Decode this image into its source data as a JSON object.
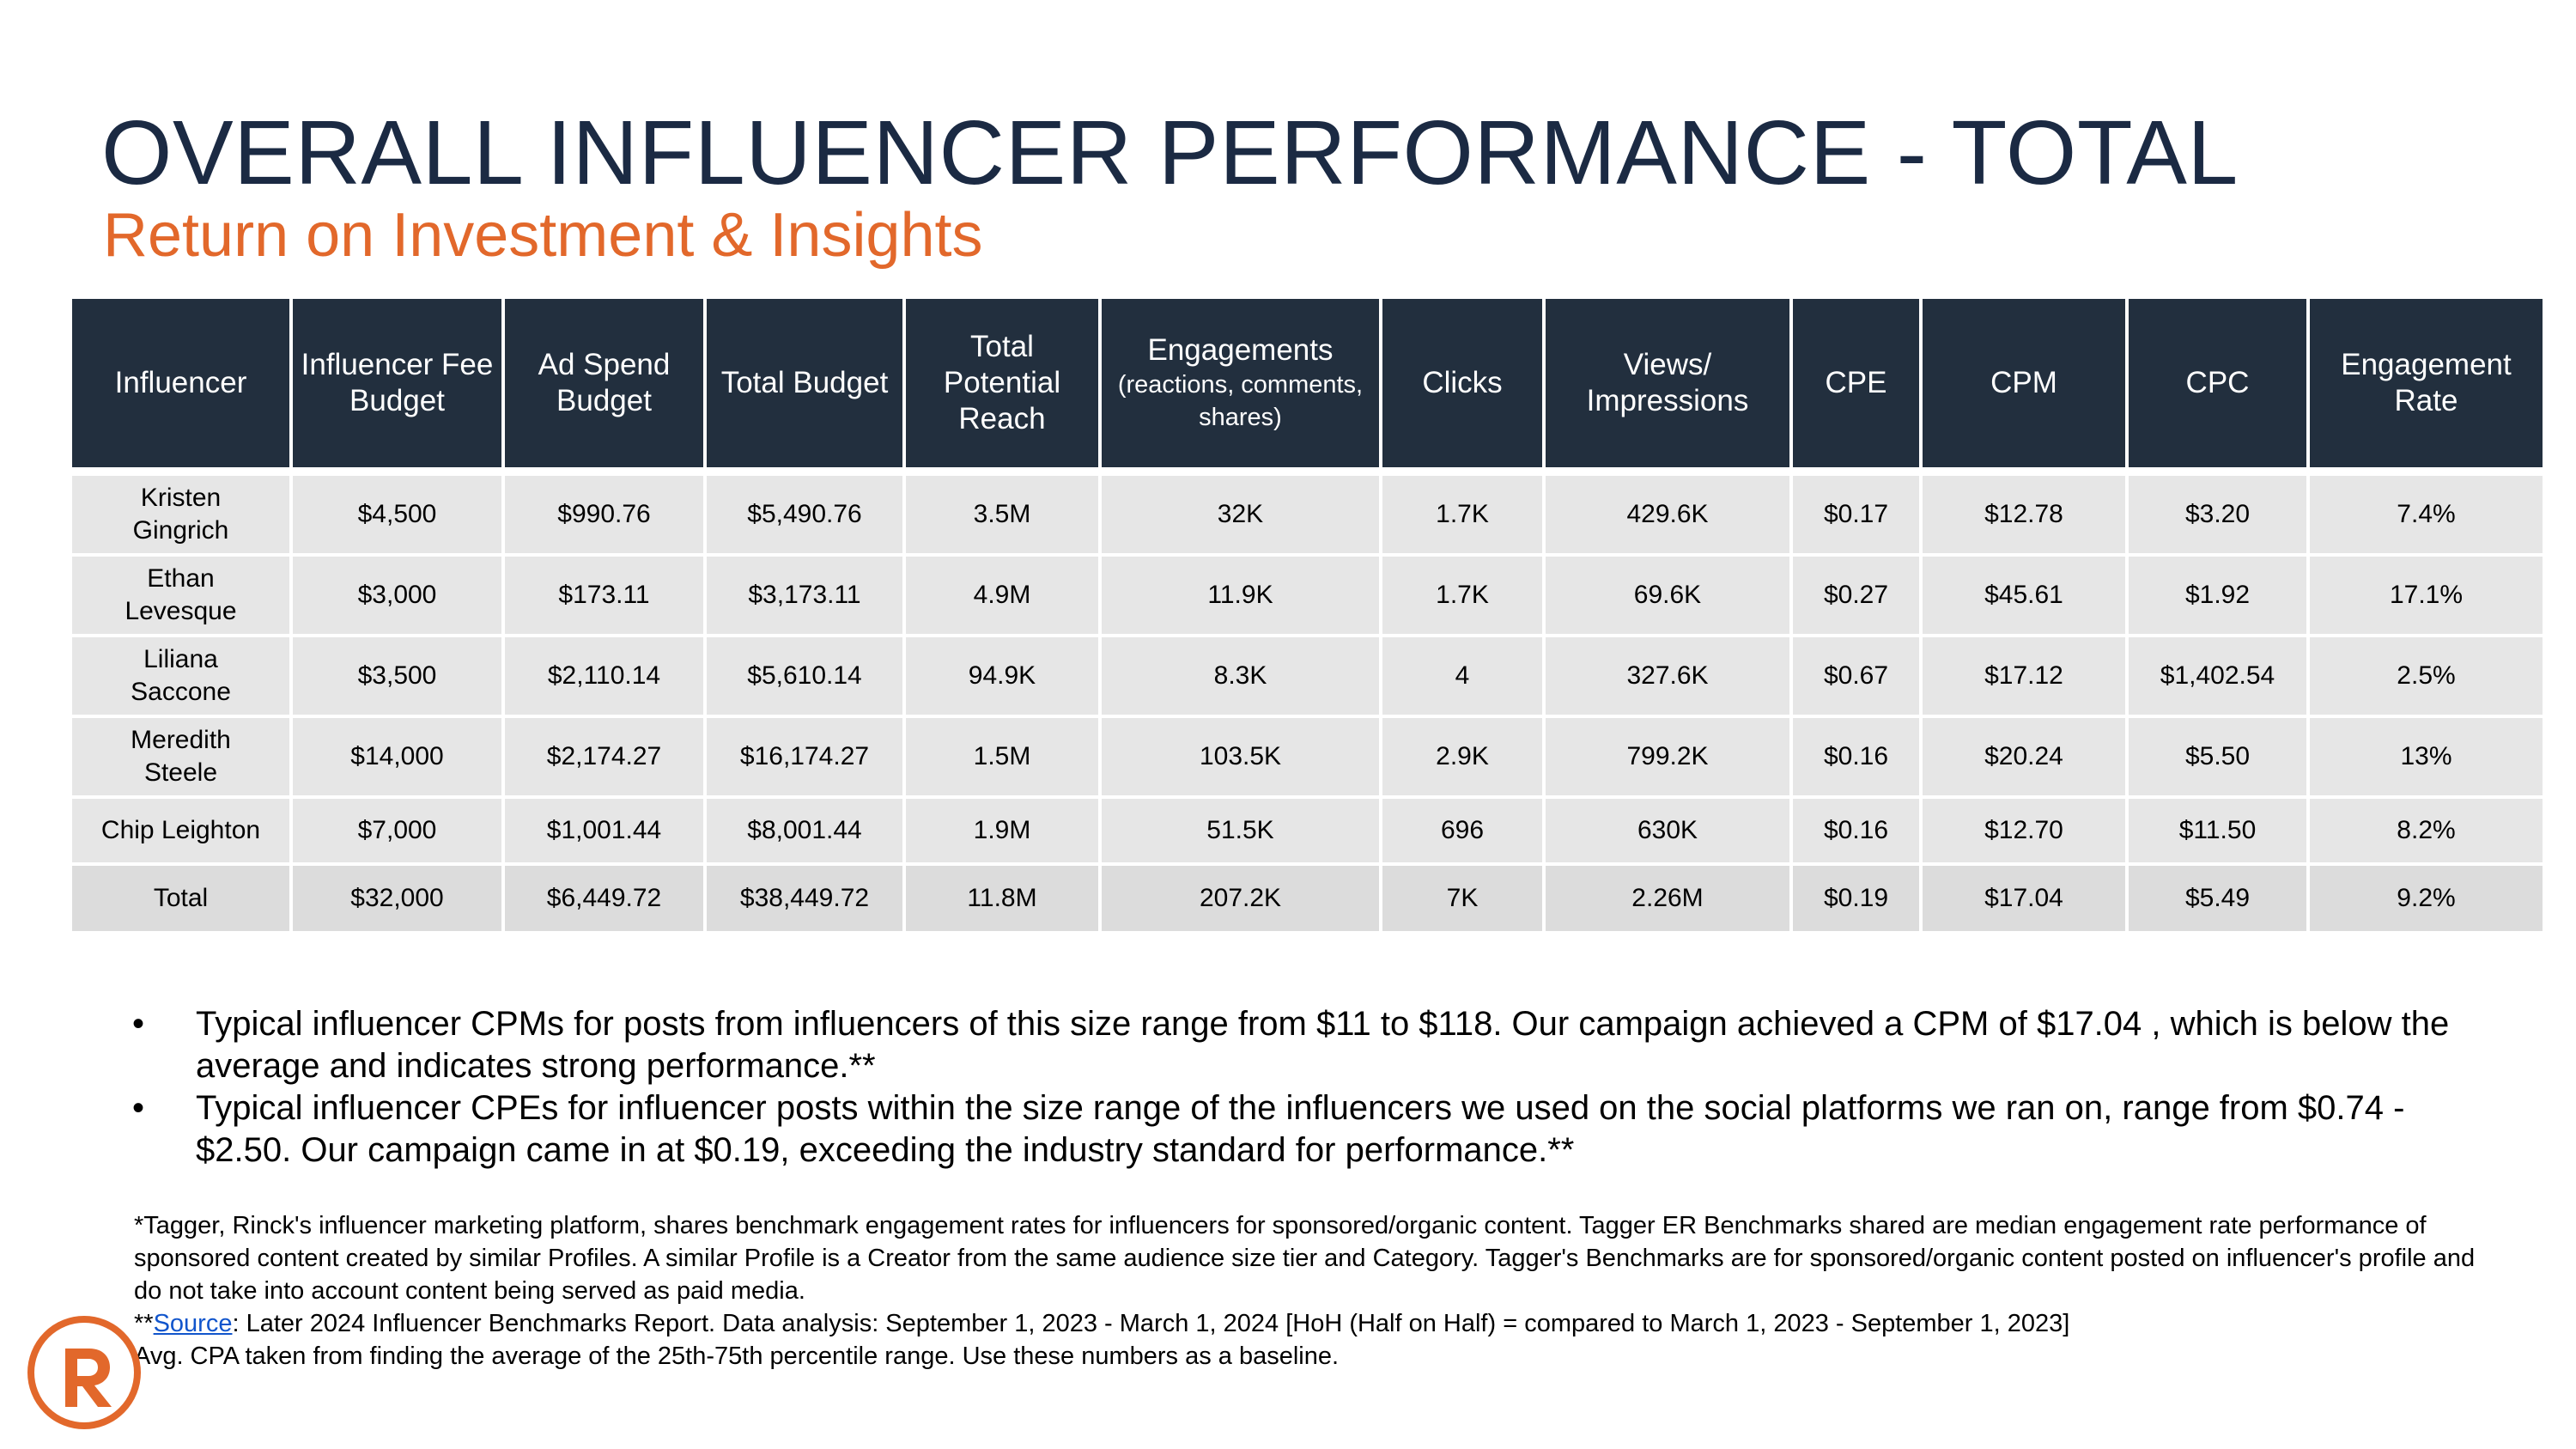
{
  "page": {
    "title": "OVERALL INFLUENCER PERFORMANCE - TOTAL",
    "subtitle": "Return on Investment & Insights"
  },
  "table": {
    "headers": [
      {
        "label": "Influencer"
      },
      {
        "label": "Influencer Fee Budget"
      },
      {
        "label": "Ad Spend Budget"
      },
      {
        "label": "Total Budget"
      },
      {
        "label": "Total Potential Reach"
      },
      {
        "label": "Engagements",
        "sub": "(reactions, comments, shares)"
      },
      {
        "label": "Clicks"
      },
      {
        "label": "Views/ Impressions"
      },
      {
        "label": "CPE"
      },
      {
        "label": "CPM"
      },
      {
        "label": "CPC"
      },
      {
        "label": "Engagement Rate"
      }
    ],
    "rows": [
      [
        "Kristen Gingrich",
        "$4,500",
        "$990.76",
        "$5,490.76",
        "3.5M",
        "32K",
        "1.7K",
        "429.6K",
        "$0.17",
        "$12.78",
        "$3.20",
        "7.4%"
      ],
      [
        "Ethan Levesque",
        "$3,000",
        "$173.11",
        "$3,173.11",
        "4.9M",
        "11.9K",
        "1.7K",
        "69.6K",
        "$0.27",
        "$45.61",
        "$1.92",
        "17.1%"
      ],
      [
        "Liliana Saccone",
        "$3,500",
        "$2,110.14",
        "$5,610.14",
        "94.9K",
        "8.3K",
        "4",
        "327.6K",
        "$0.67",
        "$17.12",
        "$1,402.54",
        "2.5%"
      ],
      [
        "Meredith Steele",
        "$14,000",
        "$2,174.27",
        "$16,174.27",
        "1.5M",
        "103.5K",
        "2.9K",
        "799.2K",
        "$0.16",
        "$20.24",
        "$5.50",
        "13%"
      ],
      [
        "Chip Leighton",
        "$7,000",
        "$1,001.44",
        "$8,001.44",
        "1.9M",
        "51.5K",
        "696",
        "630K",
        "$0.16",
        "$12.70",
        "$11.50",
        "8.2%"
      ]
    ],
    "total": [
      "Total",
      "$32,000",
      "$6,449.72",
      "$38,449.72",
      "11.8M",
      "207.2K",
      "7K",
      "2.26M",
      "$0.19",
      "$17.04",
      "$5.49",
      "9.2%"
    ]
  },
  "bullets": [
    "Typical influencer CPMs for posts from influencers of this size range from $11 to $118. Our campaign achieved a CPM of $17.04 , which is below the average and indicates strong performance.**",
    "Typical influencer CPEs for influencer posts within the size range of the influencers we used on the social platforms we ran on, range from $0.74 - $2.50. Our campaign came in at $0.19, exceeding the industry standard for performance.**"
  ],
  "bullet_marker": "•",
  "footnotes": {
    "tagger": "*Tagger, Rinck's influencer marketing platform, shares benchmark engagement rates for influencers for sponsored/organic content. Tagger ER Benchmarks shared are median engagement rate performance of sponsored content created by similar Profiles. A similar Profile is a Creator from the same audience size tier and Category. Tagger's Benchmarks are for sponsored/organic content posted on influencer's profile and do not take into account content being served as paid media.",
    "source_prefix": "**",
    "source_link": "Source",
    "source_rest": ": Later 2024 Influencer Benchmarks Report. Data analysis: September 1, 2023 - March 1, 2024 [HoH (Half on Half) = compared to March 1, 2023 - September 1, 2023]",
    "cpa": "Avg. CPA taken from finding the average of the 25th-75th percentile range. Use these numbers as a baseline."
  },
  "logo": {
    "icon": "rinck-r-logo",
    "color": "#e2682b"
  }
}
